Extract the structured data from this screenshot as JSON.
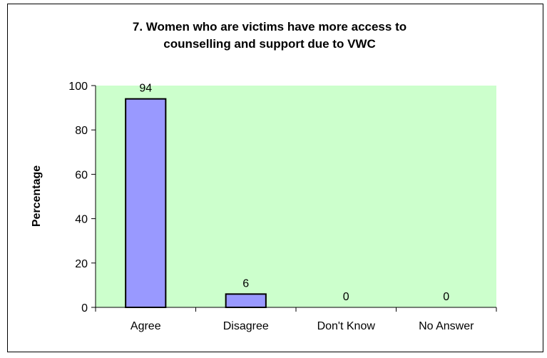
{
  "chart_data": {
    "type": "bar",
    "title_lines": [
      "7. Women who are victims have more access to",
      "counselling and support due to VWC"
    ],
    "xlabel": "",
    "ylabel": "Percentage",
    "categories": [
      "Agree",
      "Disagree",
      "Don't Know",
      "No Answer"
    ],
    "values": [
      94,
      6,
      0,
      0
    ],
    "data_labels": [
      "94",
      "6",
      "0",
      "0"
    ],
    "ylim": [
      0,
      100
    ],
    "yticks": [
      0,
      20,
      40,
      60,
      80,
      100
    ],
    "ytick_labels": [
      "0",
      "20",
      "40",
      "60",
      "80",
      "100"
    ],
    "grid": false,
    "legend": "none",
    "colors": {
      "plot_background": "#ccffcc",
      "bar_fill": "#9999ff",
      "bar_stroke": "#000000",
      "frame_border": "#000000"
    }
  }
}
